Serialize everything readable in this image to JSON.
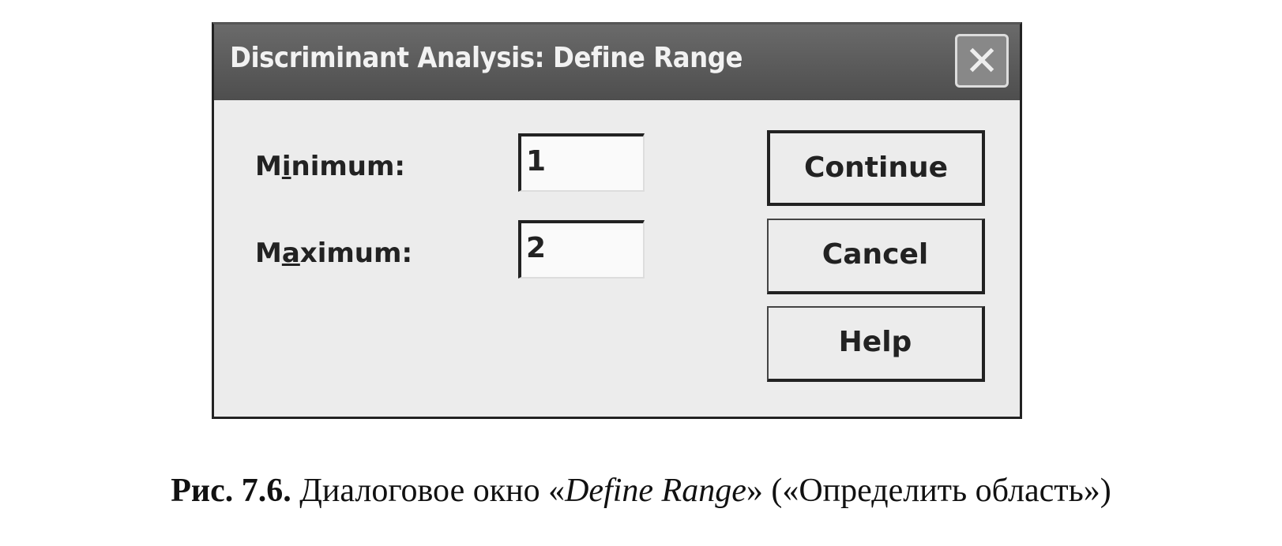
{
  "dialog": {
    "title": "Discriminant Analysis: Define Range",
    "close_icon": "close-x-icon",
    "minimum": {
      "label_pre": "M",
      "label_acc": "i",
      "label_post": "nimum:",
      "value": "1"
    },
    "maximum": {
      "label_pre": "M",
      "label_acc": "a",
      "label_post": "ximum:",
      "value": "2"
    },
    "buttons": {
      "continue": "Continue",
      "cancel": "Cancel",
      "help": "Help"
    }
  },
  "caption": {
    "number": "Рис. 7.6.",
    "text_pre": " Диалоговое окно «",
    "italic": "Define Range",
    "text_post": "» («Определить область»)"
  }
}
